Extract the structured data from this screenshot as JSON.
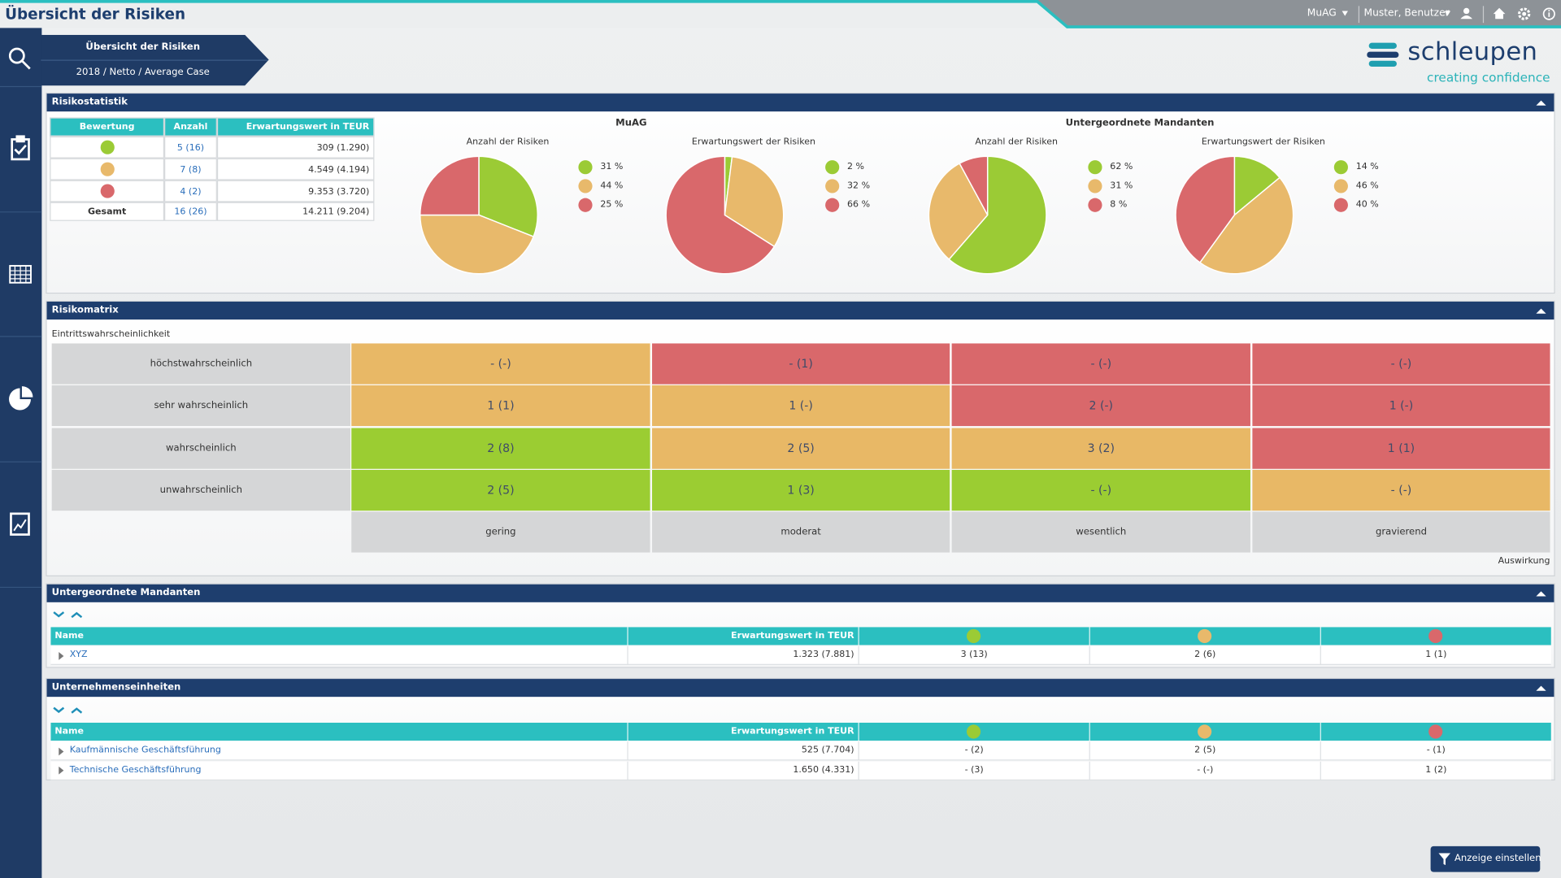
{
  "header": {
    "title": "Übersicht der Risiken",
    "client": "MuAG",
    "user": "Muster, Benutzer"
  },
  "breadcrumb": [
    "Übersicht der Risiken",
    "2018 / Netto / Average Case"
  ],
  "logo": {
    "name": "schleupen",
    "tagline": "creating confidence"
  },
  "risikostatistik": {
    "title": "Risikostatistik",
    "columns": [
      "Bewertung",
      "Anzahl",
      "Erwartungswert in TEUR"
    ],
    "rows": [
      {
        "color": "#9bcb35",
        "anzahl": "5 (16)",
        "erwartungswert": "309 (1.290)"
      },
      {
        "color": "#e8b96b",
        "anzahl": "7 (8)",
        "erwartungswert": "4.549 (4.194)"
      },
      {
        "color": "#d9686b",
        "anzahl": "4 (2)",
        "erwartungswert": "9.353 (3.720)"
      }
    ],
    "total": [
      "Gesamt",
      "16 (26)",
      "14.211 (9.204)"
    ],
    "groups": [
      "MuAG",
      "Untergeordnete Mandanten"
    ]
  },
  "chart_data": [
    {
      "type": "pie",
      "title": "Anzahl der Risiken",
      "values": [
        31,
        44,
        25
      ],
      "value_labels": [
        "31 %",
        "44 %",
        "25 %"
      ],
      "colors": [
        "#9bcb35",
        "#e8b96b",
        "#d9686b"
      ]
    },
    {
      "type": "pie",
      "title": "Erwartungswert der Risiken",
      "values": [
        2,
        32,
        66
      ],
      "value_labels": [
        "2 %",
        "32 %",
        "66 %"
      ],
      "colors": [
        "#9bcb35",
        "#e8b96b",
        "#d9686b"
      ]
    },
    {
      "type": "pie",
      "title": "Anzahl der Risiken",
      "values": [
        62,
        31,
        8
      ],
      "value_labels": [
        "62 %",
        "31 %",
        "8 %"
      ],
      "colors": [
        "#9bcb35",
        "#e8b96b",
        "#d9686b"
      ]
    },
    {
      "type": "pie",
      "title": "Erwartungswert der Risiken",
      "values": [
        14,
        46,
        40
      ],
      "value_labels": [
        "14 %",
        "46 %",
        "40 %"
      ],
      "colors": [
        "#9bcb35",
        "#e8b96b",
        "#d9686b"
      ]
    }
  ],
  "risikomatrix": {
    "title": "Risikomatrix",
    "y_label": "Eintrittswahrscheinlichkeit",
    "x_label": "Auswirkung",
    "rows": [
      "höchstwahrscheinlich",
      "sehr wahrscheinlich",
      "wahrscheinlich",
      "unwahrscheinlich"
    ],
    "columns": [
      "gering",
      "moderat",
      "wesentlich",
      "gravierend"
    ],
    "cells": [
      [
        {
          "text": "- (-)",
          "color": "#e8b866"
        },
        {
          "text": "- (1)",
          "color": "#d9686b"
        },
        {
          "text": "- (-)",
          "color": "#d9686b"
        },
        {
          "text": "- (-)",
          "color": "#d9686b"
        }
      ],
      [
        {
          "text": "1 (1)",
          "color": "#e8b866"
        },
        {
          "text": "1 (-)",
          "color": "#e8b866"
        },
        {
          "text": "2 (-)",
          "color": "#d9686b"
        },
        {
          "text": "1 (-)",
          "color": "#d9686b"
        }
      ],
      [
        {
          "text": "2 (8)",
          "color": "#9bcd32"
        },
        {
          "text": "2 (5)",
          "color": "#e8b866"
        },
        {
          "text": "3 (2)",
          "color": "#e8b866"
        },
        {
          "text": "1 (1)",
          "color": "#d9686b"
        }
      ],
      [
        {
          "text": "2 (5)",
          "color": "#9bcd32"
        },
        {
          "text": "1 (3)",
          "color": "#9bcd32"
        },
        {
          "text": "- (-)",
          "color": "#9bcd32"
        },
        {
          "text": "- (-)",
          "color": "#e8b866"
        }
      ]
    ]
  },
  "mandanten": {
    "title": "Untergeordnete Mandanten",
    "columns": [
      "Name",
      "Erwartungswert in TEUR"
    ],
    "dot_colors": [
      "#9bcb35",
      "#e8b96b",
      "#d9686b"
    ],
    "rows": [
      [
        "XYZ",
        "1.323 (7.881)",
        "3 (13)",
        "2 (6)",
        "1 (1)"
      ]
    ]
  },
  "einheiten": {
    "title": "Unternehmenseinheiten",
    "columns": [
      "Name",
      "Erwartungswert in TEUR"
    ],
    "dot_colors": [
      "#9bcb35",
      "#e8b96b",
      "#d9686b"
    ],
    "rows": [
      [
        "Kaufmännische Geschäftsführung",
        "525 (7.704)",
        "- (2)",
        "2 (5)",
        "- (1)"
      ],
      [
        "Technische Geschäftsführung",
        "1.650 (4.331)",
        "- (3)",
        "- (-)",
        "1 (2)"
      ]
    ]
  },
  "button": "Anzeige einstellen"
}
